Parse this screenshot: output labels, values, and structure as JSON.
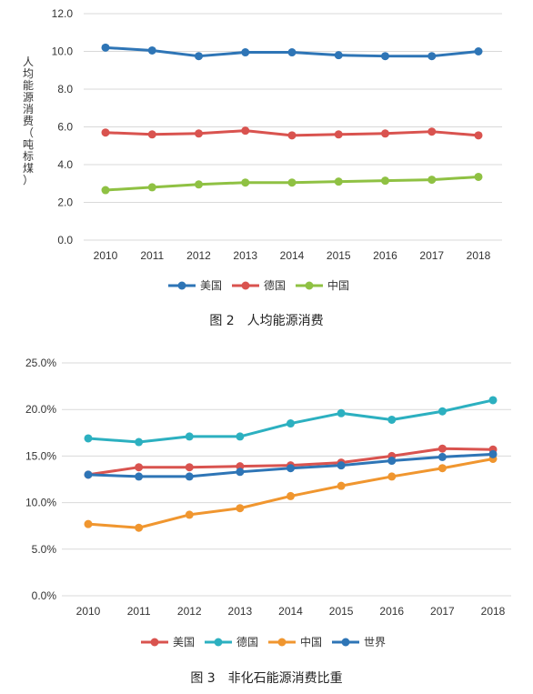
{
  "colors": {
    "usa": "#2e75b6",
    "germany_fig2": "#d9534f",
    "china_fig2": "#8fc143",
    "usa_fig3": "#d9534f",
    "germany_fig3": "#2cb0c0",
    "china_fig3": "#f0962f",
    "world_fig3": "#2e75b6",
    "grid": "#d9d9d9"
  },
  "chart_data": [
    {
      "type": "line",
      "caption": "图 2　人均能源消费",
      "ylabel": "人均能源消费（吨标煤）",
      "x": [
        "2010",
        "2011",
        "2012",
        "2013",
        "2014",
        "2015",
        "2016",
        "2017",
        "2018"
      ],
      "ylim": [
        0,
        12
      ],
      "yticks": [
        "0.0",
        "2.0",
        "4.0",
        "6.0",
        "8.0",
        "10.0",
        "12.0"
      ],
      "ytick_values": [
        0,
        2,
        4,
        6,
        8,
        10,
        12
      ],
      "grid": true,
      "legend_position": "bottom",
      "series": [
        {
          "name": "美国",
          "color": "#2e75b6",
          "values": [
            10.2,
            10.05,
            9.75,
            9.95,
            9.95,
            9.8,
            9.75,
            9.75,
            10.0
          ]
        },
        {
          "name": "德国",
          "color": "#d9534f",
          "values": [
            5.7,
            5.6,
            5.65,
            5.8,
            5.55,
            5.6,
            5.65,
            5.75,
            5.55
          ]
        },
        {
          "name": "中国",
          "color": "#8fc143",
          "values": [
            2.65,
            2.8,
            2.95,
            3.05,
            3.05,
            3.1,
            3.15,
            3.2,
            3.35
          ]
        }
      ]
    },
    {
      "type": "line",
      "caption": "图 3　非化石能源消费比重",
      "x": [
        "2010",
        "2011",
        "2012",
        "2013",
        "2014",
        "2015",
        "2016",
        "2017",
        "2018"
      ],
      "ylim": [
        0,
        25
      ],
      "yticks": [
        "0.0%",
        "5.0%",
        "10.0%",
        "15.0%",
        "20.0%",
        "25.0%"
      ],
      "ytick_values": [
        0,
        5,
        10,
        15,
        20,
        25
      ],
      "grid": true,
      "legend_position": "bottom",
      "series": [
        {
          "name": "美国",
          "color": "#d9534f",
          "values": [
            13.0,
            13.8,
            13.8,
            13.9,
            14.0,
            14.3,
            15.0,
            15.8,
            15.7
          ]
        },
        {
          "name": "德国",
          "color": "#2cb0c0",
          "values": [
            16.9,
            16.5,
            17.1,
            17.1,
            18.5,
            19.6,
            18.9,
            19.8,
            21.0
          ]
        },
        {
          "name": "中国",
          "color": "#f0962f",
          "values": [
            7.7,
            7.3,
            8.7,
            9.4,
            10.7,
            11.8,
            12.8,
            13.7,
            14.7
          ]
        },
        {
          "name": "世界",
          "color": "#2e75b6",
          "values": [
            13.0,
            12.8,
            12.8,
            13.3,
            13.7,
            14.0,
            14.5,
            14.9,
            15.2
          ]
        }
      ]
    }
  ]
}
